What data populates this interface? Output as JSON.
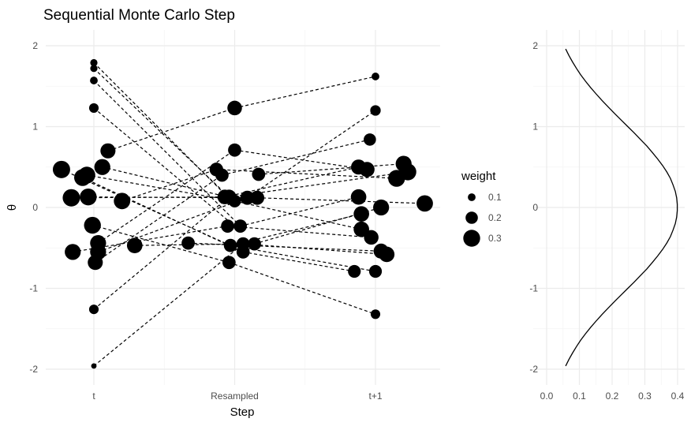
{
  "colors": {
    "background": "#ffffff",
    "grid_major": "#ebebeb",
    "grid_minor": "#f4f4f4",
    "ink": "#000000",
    "tick_text": "#4d4d4d"
  },
  "chart_data": [
    {
      "type": "scatter",
      "title": "Sequential Monte Carlo Step",
      "xlabel": "Step",
      "ylabel": "θ",
      "categories": [
        "t",
        "Resampled",
        "t+1"
      ],
      "ylim": [
        -2.2,
        2.2
      ],
      "yticks": [
        "2",
        "1",
        "0",
        "-1",
        "-2"
      ],
      "grid": true,
      "legend": {
        "title": "weight",
        "position": "right",
        "entries": [
          {
            "label": "0.1",
            "size": 0.1
          },
          {
            "label": "0.2",
            "size": 0.2
          },
          {
            "label": "0.3",
            "size": 0.3
          }
        ]
      },
      "points": [
        {
          "x": 0.0,
          "y": 1.79,
          "w": 0.09
        },
        {
          "x": 0.0,
          "y": 1.72,
          "w": 0.09
        },
        {
          "x": 0.0,
          "y": 1.57,
          "w": 0.1
        },
        {
          "x": 0.0,
          "y": 1.23,
          "w": 0.14
        },
        {
          "x": 0.1,
          "y": 0.7,
          "w": 0.26
        },
        {
          "x": 0.06,
          "y": 0.5,
          "w": 0.28
        },
        {
          "x": -0.23,
          "y": 0.47,
          "w": 0.31
        },
        {
          "x": -0.05,
          "y": 0.4,
          "w": 0.3
        },
        {
          "x": -0.08,
          "y": 0.37,
          "w": 0.3
        },
        {
          "x": -0.16,
          "y": 0.12,
          "w": 0.31
        },
        {
          "x": -0.04,
          "y": 0.13,
          "w": 0.3
        },
        {
          "x": 0.2,
          "y": 0.08,
          "w": 0.29
        },
        {
          "x": -0.01,
          "y": -0.22,
          "w": 0.3
        },
        {
          "x": 0.03,
          "y": -0.44,
          "w": 0.28
        },
        {
          "x": 0.29,
          "y": -0.47,
          "w": 0.27
        },
        {
          "x": -0.15,
          "y": -0.55,
          "w": 0.28
        },
        {
          "x": 0.03,
          "y": -0.55,
          "w": 0.28
        },
        {
          "x": 0.01,
          "y": -0.68,
          "w": 0.26
        },
        {
          "x": 0.0,
          "y": -1.26,
          "w": 0.14
        },
        {
          "x": 0.0,
          "y": -1.96,
          "w": 0.05
        },
        {
          "x": 1.0,
          "y": 1.23,
          "w": 0.25
        },
        {
          "x": 1.0,
          "y": 0.71,
          "w": 0.22
        },
        {
          "x": 0.87,
          "y": 0.47,
          "w": 0.23
        },
        {
          "x": 0.91,
          "y": 0.4,
          "w": 0.22
        },
        {
          "x": 1.17,
          "y": 0.41,
          "w": 0.22
        },
        {
          "x": 0.93,
          "y": 0.13,
          "w": 0.25
        },
        {
          "x": 0.96,
          "y": 0.13,
          "w": 0.25
        },
        {
          "x": 1.0,
          "y": 0.08,
          "w": 0.21
        },
        {
          "x": 1.09,
          "y": 0.12,
          "w": 0.24
        },
        {
          "x": 1.16,
          "y": 0.12,
          "w": 0.24
        },
        {
          "x": 0.95,
          "y": -0.23,
          "w": 0.22
        },
        {
          "x": 1.04,
          "y": -0.23,
          "w": 0.22
        },
        {
          "x": 0.67,
          "y": -0.44,
          "w": 0.22
        },
        {
          "x": 0.97,
          "y": -0.47,
          "w": 0.22
        },
        {
          "x": 1.06,
          "y": -0.45,
          "w": 0.22
        },
        {
          "x": 1.14,
          "y": -0.45,
          "w": 0.22
        },
        {
          "x": 1.06,
          "y": -0.55,
          "w": 0.22
        },
        {
          "x": 0.96,
          "y": -0.68,
          "w": 0.22
        },
        {
          "x": 2.0,
          "y": 1.62,
          "w": 0.1
        },
        {
          "x": 2.0,
          "y": 1.2,
          "w": 0.16
        },
        {
          "x": 1.96,
          "y": 0.84,
          "w": 0.2
        },
        {
          "x": 1.88,
          "y": 0.5,
          "w": 0.26
        },
        {
          "x": 1.94,
          "y": 0.47,
          "w": 0.26
        },
        {
          "x": 2.2,
          "y": 0.54,
          "w": 0.28
        },
        {
          "x": 2.23,
          "y": 0.44,
          "w": 0.3
        },
        {
          "x": 2.15,
          "y": 0.36,
          "w": 0.3
        },
        {
          "x": 1.88,
          "y": 0.13,
          "w": 0.27
        },
        {
          "x": 2.04,
          "y": 0.0,
          "w": 0.28
        },
        {
          "x": 1.9,
          "y": -0.08,
          "w": 0.27
        },
        {
          "x": 2.35,
          "y": 0.05,
          "w": 0.29
        },
        {
          "x": 1.9,
          "y": -0.27,
          "w": 0.27
        },
        {
          "x": 1.97,
          "y": -0.37,
          "w": 0.25
        },
        {
          "x": 2.04,
          "y": -0.54,
          "w": 0.26
        },
        {
          "x": 2.08,
          "y": -0.58,
          "w": 0.27
        },
        {
          "x": 1.85,
          "y": -0.79,
          "w": 0.21
        },
        {
          "x": 2.0,
          "y": -0.79,
          "w": 0.21
        },
        {
          "x": 2.0,
          "y": -1.32,
          "w": 0.14
        }
      ],
      "segments": [
        [
          {
            "x": 0.0,
            "y": 1.79
          },
          {
            "x": 0.95,
            "y": 0.13
          }
        ],
        [
          {
            "x": 0.0,
            "y": 1.72
          },
          {
            "x": 0.96,
            "y": 0.13
          }
        ],
        [
          {
            "x": 0.0,
            "y": 1.57
          },
          {
            "x": 1.04,
            "y": -0.23
          }
        ],
        [
          {
            "x": 0.0,
            "y": 1.23
          },
          {
            "x": 1.0,
            "y": -0.23
          }
        ],
        [
          {
            "x": 0.1,
            "y": 0.7
          },
          {
            "x": 1.0,
            "y": 1.23
          }
        ],
        [
          {
            "x": 0.06,
            "y": 0.5
          },
          {
            "x": 0.95,
            "y": 0.13
          }
        ],
        [
          {
            "x": -0.23,
            "y": 0.47
          },
          {
            "x": 0.97,
            "y": -0.47
          }
        ],
        [
          {
            "x": -0.05,
            "y": 0.4
          },
          {
            "x": 1.0,
            "y": 0.08
          }
        ],
        [
          {
            "x": -0.08,
            "y": 0.37
          },
          {
            "x": 1.06,
            "y": -0.55
          }
        ],
        [
          {
            "x": -0.16,
            "y": 0.12
          },
          {
            "x": 0.93,
            "y": 0.13
          }
        ],
        [
          {
            "x": -0.04,
            "y": 0.13
          },
          {
            "x": 1.16,
            "y": 0.12
          }
        ],
        [
          {
            "x": 0.2,
            "y": 0.08
          },
          {
            "x": 0.87,
            "y": 0.47
          }
        ],
        [
          {
            "x": -0.01,
            "y": -0.22
          },
          {
            "x": 0.96,
            "y": -0.68
          }
        ],
        [
          {
            "x": 0.03,
            "y": -0.44
          },
          {
            "x": 1.0,
            "y": 0.71
          }
        ],
        [
          {
            "x": 0.29,
            "y": -0.47
          },
          {
            "x": 1.06,
            "y": -0.45
          }
        ],
        [
          {
            "x": -0.15,
            "y": -0.55
          },
          {
            "x": 0.95,
            "y": -0.23
          }
        ],
        [
          {
            "x": 0.03,
            "y": -0.55
          },
          {
            "x": 1.09,
            "y": 0.12
          }
        ],
        [
          {
            "x": 0.01,
            "y": -0.68
          },
          {
            "x": 0.91,
            "y": 0.4
          }
        ],
        [
          {
            "x": 0.0,
            "y": -1.26
          },
          {
            "x": 0.96,
            "y": 0.13
          }
        ],
        [
          {
            "x": 0.0,
            "y": -1.96
          },
          {
            "x": 1.06,
            "y": -0.45
          }
        ],
        [
          {
            "x": 1.0,
            "y": 1.23
          },
          {
            "x": 2.0,
            "y": 1.62
          }
        ],
        [
          {
            "x": 1.0,
            "y": 0.71
          },
          {
            "x": 1.94,
            "y": 0.47
          }
        ],
        [
          {
            "x": 0.87,
            "y": 0.47
          },
          {
            "x": 2.15,
            "y": 0.36
          }
        ],
        [
          {
            "x": 0.91,
            "y": 0.4
          },
          {
            "x": 1.96,
            "y": 0.84
          }
        ],
        [
          {
            "x": 1.17,
            "y": 0.41
          },
          {
            "x": 2.2,
            "y": 0.54
          }
        ],
        [
          {
            "x": 0.93,
            "y": 0.13
          },
          {
            "x": 1.88,
            "y": 0.5
          }
        ],
        [
          {
            "x": 0.96,
            "y": 0.13
          },
          {
            "x": 2.23,
            "y": 0.44
          }
        ],
        [
          {
            "x": 1.0,
            "y": 0.08
          },
          {
            "x": 1.9,
            "y": -0.27
          }
        ],
        [
          {
            "x": 1.09,
            "y": 0.12
          },
          {
            "x": 2.0,
            "y": 1.2
          }
        ],
        [
          {
            "x": 1.16,
            "y": 0.12
          },
          {
            "x": 2.35,
            "y": 0.05
          }
        ],
        [
          {
            "x": 0.95,
            "y": -0.23
          },
          {
            "x": 1.97,
            "y": -0.37
          }
        ],
        [
          {
            "x": 1.04,
            "y": -0.23
          },
          {
            "x": 1.88,
            "y": 0.13
          }
        ],
        [
          {
            "x": 0.67,
            "y": -0.44
          },
          {
            "x": 2.04,
            "y": -0.54
          }
        ],
        [
          {
            "x": 0.97,
            "y": -0.47
          },
          {
            "x": 1.9,
            "y": -0.08
          }
        ],
        [
          {
            "x": 1.06,
            "y": -0.45
          },
          {
            "x": 2.08,
            "y": -0.58
          }
        ],
        [
          {
            "x": 1.14,
            "y": -0.45
          },
          {
            "x": 2.04,
            "y": 0.0
          }
        ],
        [
          {
            "x": 1.06,
            "y": -0.55
          },
          {
            "x": 1.85,
            "y": -0.79
          }
        ],
        [
          {
            "x": 0.96,
            "y": -0.68
          },
          {
            "x": 2.0,
            "y": -1.32
          }
        ],
        [
          {
            "x": 0.97,
            "y": -0.47
          },
          {
            "x": 2.0,
            "y": -0.79
          }
        ]
      ]
    },
    {
      "type": "line",
      "title": "",
      "xlabel": "",
      "ylabel": "",
      "xlim": [
        -0.01,
        0.41
      ],
      "ylim": [
        -2.2,
        2.2
      ],
      "xticks": [
        "0.0",
        "0.1",
        "0.2",
        "0.3",
        "0.4"
      ],
      "yticks": [
        "2",
        "1",
        "0",
        "-1",
        "-2"
      ],
      "grid": true,
      "curve": "standard normal density, theta from -1.96 to 1.96",
      "series": [
        {
          "x": [
            0.058,
            0.068,
            0.079,
            0.091,
            0.104,
            0.119,
            0.135,
            0.152,
            0.17,
            0.189,
            0.208,
            0.228,
            0.248,
            0.268,
            0.287,
            0.306,
            0.323,
            0.339,
            0.354,
            0.367,
            0.378,
            0.386,
            0.393,
            0.397,
            0.399,
            0.399,
            0.397,
            0.393,
            0.386,
            0.378,
            0.367,
            0.354,
            0.339,
            0.323,
            0.306,
            0.287,
            0.268,
            0.248,
            0.228,
            0.208,
            0.189,
            0.17,
            0.152,
            0.135,
            0.119,
            0.104,
            0.091,
            0.079,
            0.068,
            0.058
          ],
          "y": [
            -1.96,
            -1.88,
            -1.8,
            -1.72,
            -1.64,
            -1.56,
            -1.48,
            -1.4,
            -1.32,
            -1.24,
            -1.16,
            -1.08,
            -1.0,
            -0.92,
            -0.84,
            -0.76,
            -0.68,
            -0.6,
            -0.52,
            -0.44,
            -0.36,
            -0.28,
            -0.2,
            -0.12,
            -0.04,
            0.04,
            0.12,
            0.2,
            0.28,
            0.36,
            0.44,
            0.52,
            0.6,
            0.68,
            0.76,
            0.84,
            0.92,
            1.0,
            1.08,
            1.16,
            1.24,
            1.32,
            1.4,
            1.48,
            1.56,
            1.64,
            1.72,
            1.8,
            1.88,
            1.96
          ]
        }
      ]
    }
  ]
}
